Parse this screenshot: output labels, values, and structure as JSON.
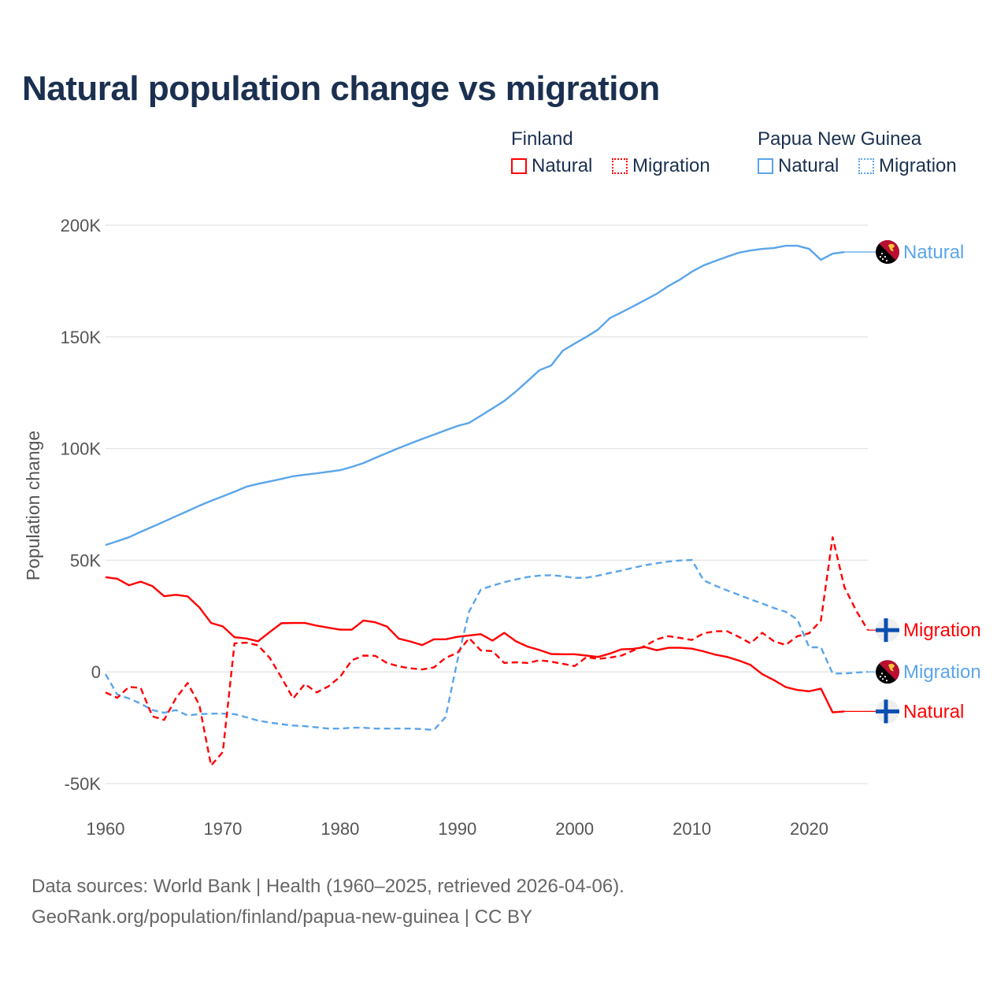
{
  "title": "Natural population change vs migration",
  "legend": {
    "groups": [
      {
        "country": "Finland",
        "items": [
          {
            "label": "Natural",
            "style": "solid"
          },
          {
            "label": "Migration",
            "style": "dotted"
          }
        ],
        "color": "#ff0000"
      },
      {
        "country": "Papua New Guinea",
        "items": [
          {
            "label": "Natural",
            "style": "solid"
          },
          {
            "label": "Migration",
            "style": "dotted"
          }
        ],
        "color": "#5aa5ea"
      }
    ]
  },
  "footer": {
    "line1": "Data sources: World Bank | Health (1960–2025, retrieved 2026-04-06).",
    "line2": "GeoRank.org/population/finland/papua-new-guinea | CC BY"
  },
  "chart_data": {
    "type": "line",
    "title": "Natural population change vs migration",
    "xlabel": "",
    "ylabel": "Population change",
    "xlim": [
      1960,
      2025
    ],
    "ylim": [
      -50000,
      200000
    ],
    "xticks": [
      {
        "v": 1960,
        "label": "1960"
      },
      {
        "v": 1970,
        "label": "1970"
      },
      {
        "v": 1980,
        "label": "1980"
      },
      {
        "v": 1990,
        "label": "1990"
      },
      {
        "v": 2000,
        "label": "2000"
      },
      {
        "v": 2010,
        "label": "2010"
      },
      {
        "v": 2020,
        "label": "2020"
      }
    ],
    "yticks": [
      {
        "v": 200000,
        "label": "200K"
      },
      {
        "v": 150000,
        "label": "150K"
      },
      {
        "v": 100000,
        "label": "100K"
      },
      {
        "v": 50000,
        "label": "50K"
      },
      {
        "v": 0,
        "label": "0"
      },
      {
        "v": -50000,
        "label": "-50K"
      }
    ],
    "grid": true,
    "legend_position": "top-right",
    "series": [
      {
        "name": "Papua New Guinea Natural",
        "end_label": "Natural",
        "country": "png",
        "color": "#5aa5ea",
        "dash": false,
        "x_start": 1960,
        "values": [
          56800,
          58500,
          60300,
          62700,
          65000,
          67300,
          69700,
          72000,
          74400,
          76600,
          78600,
          80700,
          82900,
          84200,
          85300,
          86400,
          87600,
          88300,
          88900,
          89600,
          90300,
          91800,
          93500,
          95800,
          98000,
          100200,
          102300,
          104300,
          106200,
          108200,
          110100,
          111500,
          114700,
          118000,
          121300,
          125600,
          130300,
          135100,
          137200,
          143900,
          147000,
          150000,
          153300,
          158400,
          161000,
          163700,
          166500,
          169300,
          172800,
          175700,
          179200,
          182000,
          184000,
          185900,
          187700,
          188700,
          189400,
          189800,
          190800,
          190800,
          189400,
          184500,
          187300,
          188000
        ]
      },
      {
        "name": "Papua New Guinea Migration",
        "end_label": "Migration",
        "country": "png",
        "color": "#5aa5ea",
        "dash": true,
        "x_start": 1960,
        "values": [
          -1000,
          -10100,
          -11900,
          -14200,
          -17100,
          -18300,
          -17100,
          -19500,
          -18900,
          -18700,
          -18700,
          -18900,
          -20300,
          -21800,
          -22700,
          -23400,
          -24000,
          -24300,
          -24800,
          -25400,
          -25400,
          -25000,
          -25000,
          -25400,
          -25400,
          -25400,
          -25400,
          -25600,
          -26000,
          -20200,
          5000,
          27000,
          36900,
          38600,
          40200,
          41400,
          42500,
          43100,
          43300,
          42800,
          42100,
          42200,
          43100,
          44300,
          45400,
          46600,
          47800,
          48600,
          49400,
          49900,
          50100,
          41000,
          38600,
          36500,
          34500,
          32500,
          30600,
          28600,
          26900,
          23400,
          11000,
          11000,
          -700,
          -700,
          -300,
          0
        ]
      },
      {
        "name": "Finland Natural",
        "end_label": "Natural",
        "country": "fin",
        "color": "#ff0000",
        "dash": false,
        "x_start": 1960,
        "values": [
          42400,
          41700,
          38800,
          40400,
          38400,
          33900,
          34500,
          33800,
          28900,
          21900,
          20400,
          15500,
          15000,
          13700,
          17800,
          21800,
          21900,
          21900,
          20700,
          19800,
          18900,
          18900,
          23000,
          22200,
          20300,
          14900,
          13600,
          12000,
          14600,
          14600,
          15700,
          16300,
          16900,
          14000,
          17500,
          13700,
          11300,
          9800,
          8000,
          7900,
          7900,
          7300,
          6700,
          8200,
          10100,
          10300,
          11100,
          9700,
          10800,
          10800,
          10400,
          9200,
          7700,
          6700,
          5100,
          3100,
          -1000,
          -3700,
          -6800,
          -8100,
          -8700,
          -7500,
          -18100,
          -17700
        ]
      },
      {
        "name": "Finland Migration",
        "end_label": "Migration",
        "country": "fin",
        "color": "#ff0000",
        "dash": true,
        "x_start": 1960,
        "values": [
          -9200,
          -11600,
          -6700,
          -7200,
          -19900,
          -21500,
          -11800,
          -5000,
          -14800,
          -41900,
          -35900,
          12800,
          13100,
          11900,
          6300,
          -2500,
          -11900,
          -5400,
          -9200,
          -6500,
          -2200,
          5200,
          7300,
          7200,
          4000,
          2500,
          1600,
          1100,
          2000,
          6300,
          8500,
          15100,
          9600,
          9300,
          4000,
          4300,
          4000,
          5200,
          4600,
          3600,
          2600,
          6600,
          5800,
          6400,
          7300,
          9600,
          11600,
          14600,
          16000,
          15200,
          14300,
          17300,
          18200,
          18200,
          15700,
          12800,
          17500,
          13700,
          12100,
          16000,
          17300,
          23000,
          60300,
          38000,
          27500,
          18700
        ]
      }
    ]
  }
}
